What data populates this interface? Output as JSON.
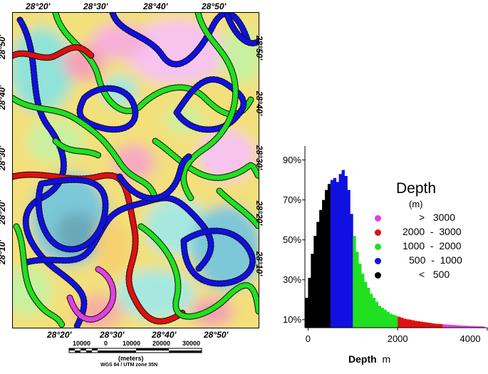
{
  "map": {
    "top_labels": [
      "28°20'",
      "28°30'",
      "28°40'",
      "28°50'"
    ],
    "bottom_labels": [
      "28°20'",
      "28°30'",
      "28°40'",
      "28°50'"
    ],
    "left_labels": [
      "28°50'",
      "28°40'",
      "28°30'",
      "28°20'",
      "28°10'"
    ],
    "right_labels": [
      "28°50'",
      "28°40'",
      "28°30'",
      "28°20'",
      "28°10'"
    ],
    "scale_ticks": [
      "10000",
      "0",
      "10000",
      "20000",
      "30000"
    ],
    "scale_unit": "(meters)",
    "projection": "WGS 84 / UTM zone 35N"
  },
  "legend": {
    "title": "Depth",
    "unit": "(m)",
    "items": [
      {
        "label": ">   3000",
        "color": "#e040e0"
      },
      {
        "label": "2000  -  3000",
        "color": "#e01010"
      },
      {
        "label": "1000  -  2000",
        "color": "#20e020"
      },
      {
        "label": "500  -  1000",
        "color": "#1010e0"
      },
      {
        "label": "<   500",
        "color": "#000000"
      }
    ]
  },
  "chart_data": {
    "type": "bar",
    "xlabel": "Depth",
    "xunit": "m",
    "ylabel": "",
    "xlim": [
      -70,
      4000
    ],
    "ylim": [
      6,
      97
    ],
    "x_ticks": [
      "0",
      "2000",
      "4000"
    ],
    "y_ticks": [
      "10%",
      "30%",
      "50%",
      "70%",
      "90%"
    ],
    "bin_width": 62.5,
    "bins_start": -62.5,
    "values": [
      21,
      31,
      43,
      52,
      59,
      65,
      70,
      75,
      78,
      80,
      81,
      79,
      83,
      85,
      82,
      75,
      63,
      52,
      44,
      38,
      33,
      29,
      26,
      23,
      21,
      19,
      17,
      16,
      15,
      14,
      13,
      12.5,
      12,
      11.5,
      11,
      10.5,
      10.2,
      10,
      9.7,
      9.4,
      9.2,
      9,
      8.8,
      8.6,
      8.4,
      8.2,
      8,
      7.9,
      7.8,
      7.7,
      7.6,
      7.5,
      7.4,
      7.3,
      7.2,
      7.1,
      7,
      7,
      6.9,
      6.8,
      6.8,
      6.7,
      6.7,
      6.6
    ],
    "color_ranges": [
      {
        "from": -1000,
        "to": 500,
        "color": "#000000"
      },
      {
        "from": 500,
        "to": 1000,
        "color": "#1010e0"
      },
      {
        "from": 1000,
        "to": 2000,
        "color": "#20e020"
      },
      {
        "from": 2000,
        "to": 3000,
        "color": "#e01010"
      },
      {
        "from": 3000,
        "to": 99999,
        "color": "#e040e0"
      }
    ]
  }
}
